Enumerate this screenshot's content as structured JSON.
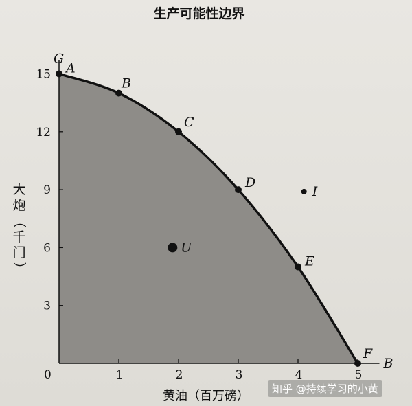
{
  "chart_data": {
    "type": "line",
    "title": "生产可能性边界",
    "xlabel": "黄油（百万磅）",
    "ylabel": "大炮（千门）",
    "x_axis_end_label": "B",
    "y_axis_end_label": "G",
    "origin_label": "0",
    "xlim": [
      0,
      5.5
    ],
    "ylim": [
      0,
      16
    ],
    "x_ticks": [
      1,
      2,
      3,
      4,
      5
    ],
    "y_ticks": [
      3,
      6,
      9,
      12,
      15
    ],
    "grid": false,
    "frontier": {
      "points": [
        {
          "label": "A",
          "x": 0,
          "y": 15
        },
        {
          "label": "B",
          "x": 1,
          "y": 14
        },
        {
          "label": "C",
          "x": 2,
          "y": 12
        },
        {
          "label": "D",
          "x": 3,
          "y": 9
        },
        {
          "label": "E",
          "x": 4,
          "y": 5
        },
        {
          "label": "F",
          "x": 5,
          "y": 0
        }
      ],
      "shaded_region": true
    },
    "other_points": [
      {
        "label": "U",
        "x": 1.9,
        "y": 6
      },
      {
        "label": "I",
        "x": 4.1,
        "y": 8.9
      }
    ],
    "colors": {
      "curve": "#111111",
      "shade": "#8e8c88",
      "text": "#111111"
    }
  },
  "watermark": "知乎 @持续学习的小黄"
}
